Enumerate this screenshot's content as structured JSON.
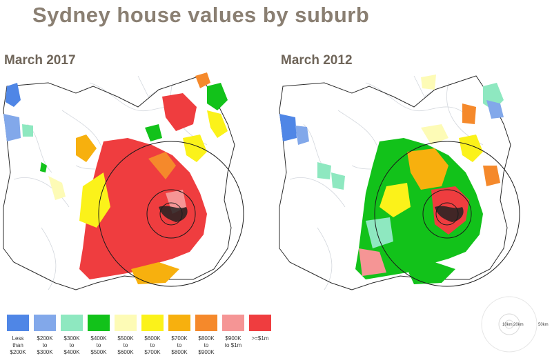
{
  "title": "Sydney house values by suburb",
  "maps": [
    {
      "label": "March 2017"
    },
    {
      "label": "March 2012"
    }
  ],
  "legend": [
    {
      "label": "Less\nthan\n$200K",
      "color": "#4f86e6"
    },
    {
      "label": "$200K\nto\n$300K",
      "color": "#82a8ea"
    },
    {
      "label": "$300K\nto\n$400K",
      "color": "#8ee8c0"
    },
    {
      "label": "$400K\nto\n$500K",
      "color": "#12c21a"
    },
    {
      "label": "$500K\nto\n$600K",
      "color": "#fdfbb6"
    },
    {
      "label": "$600K\nto\n$700K",
      "color": "#fbf21a"
    },
    {
      "label": "$700K\nto\n$800K",
      "color": "#f7b00e"
    },
    {
      "label": "$800K\nto\n$900K",
      "color": "#f5892b"
    },
    {
      "label": "$900K\nto $1m",
      "color": "#f59595"
    },
    {
      "label": ">=$1m",
      "color": "#ef3d3f"
    }
  ],
  "scale_rings": [
    "10km",
    "20km",
    "50km"
  ]
}
